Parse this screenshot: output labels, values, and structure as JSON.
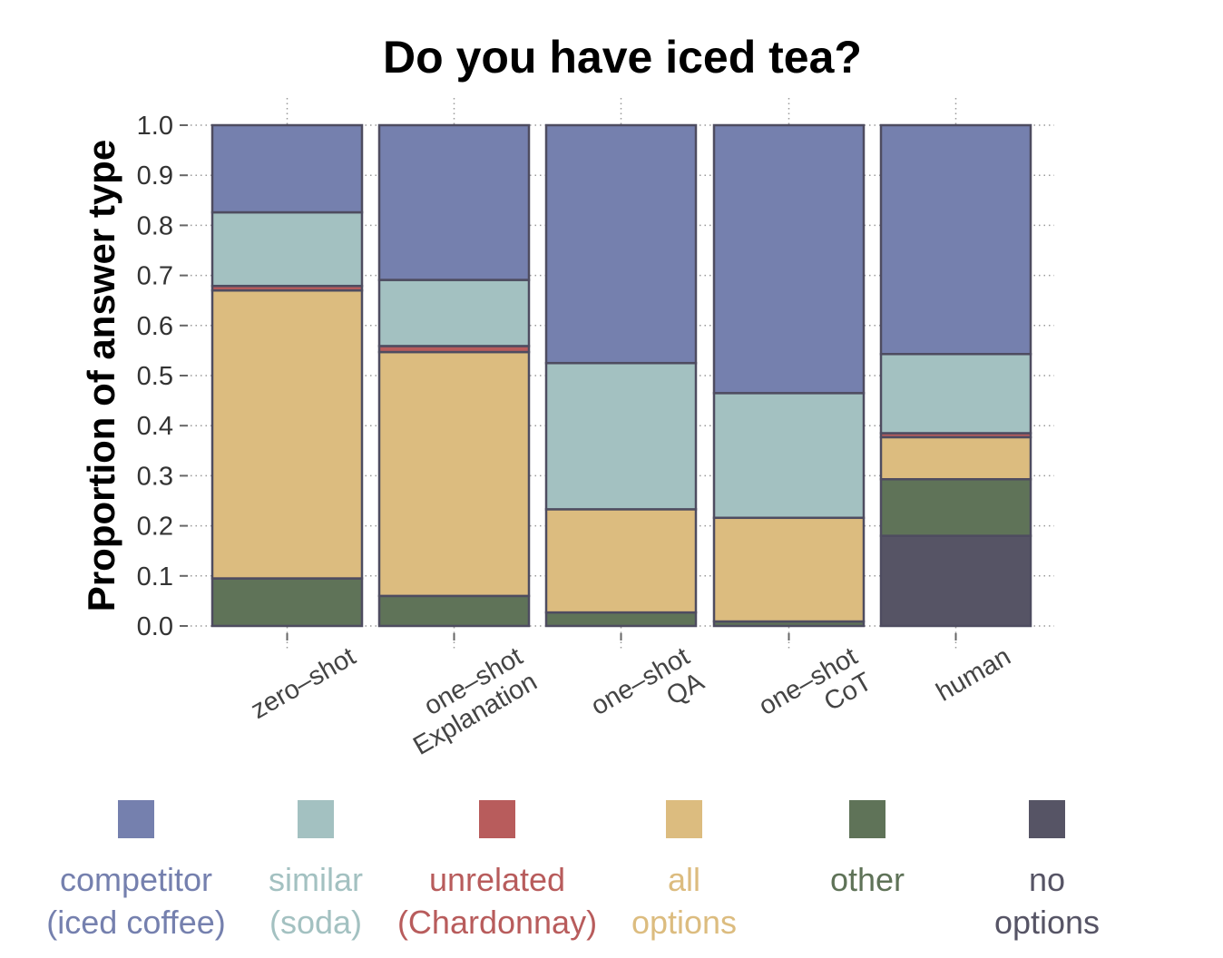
{
  "chart_data": {
    "type": "bar",
    "stacked": true,
    "title": "Do you have iced tea?",
    "ylabel": "Proportion of answer type",
    "xlabel": "",
    "ylim": [
      0,
      1
    ],
    "yticks": [
      "0.0",
      "0.1",
      "0.2",
      "0.3",
      "0.4",
      "0.5",
      "0.6",
      "0.7",
      "0.8",
      "0.9",
      "1.0"
    ],
    "grid": true,
    "legend_position": "bottom",
    "categories": [
      [
        "zero–shot"
      ],
      [
        "one–shot",
        "Explanation"
      ],
      [
        "one–shot",
        "QA"
      ],
      [
        "one–shot",
        "CoT"
      ],
      [
        "human"
      ]
    ],
    "series": [
      {
        "name": "no options",
        "color": "#565465",
        "values": [
          0.0,
          0.0,
          0.0,
          0.0,
          0.18
        ]
      },
      {
        "name": "other",
        "color": "#5f7358",
        "values": [
          0.095,
          0.06,
          0.027,
          0.009,
          0.113
        ]
      },
      {
        "name": "all options",
        "color": "#dcbc7f",
        "values": [
          0.575,
          0.487,
          0.206,
          0.207,
          0.084
        ]
      },
      {
        "name": "unrelated (Chardonnay)",
        "color": "#b85c5c",
        "values": [
          0.009,
          0.012,
          0.0,
          0.0,
          0.008
        ]
      },
      {
        "name": "similar (soda)",
        "color": "#a3c1c1",
        "values": [
          0.147,
          0.132,
          0.292,
          0.249,
          0.158
        ]
      },
      {
        "name": "competitor (iced coffee)",
        "color": "#7580ae",
        "values": [
          0.174,
          0.309,
          0.475,
          0.535,
          0.457
        ]
      }
    ]
  },
  "legend": [
    {
      "lines": [
        "competitor",
        "(iced coffee)"
      ],
      "color": "#7580ae"
    },
    {
      "lines": [
        "similar",
        "(soda)"
      ],
      "color": "#a3c1c1"
    },
    {
      "lines": [
        "unrelated",
        "(Chardonnay)"
      ],
      "color": "#b85c5c"
    },
    {
      "lines": [
        "all",
        "options"
      ],
      "color": "#dcbc7f"
    },
    {
      "lines": [
        "other"
      ],
      "color": "#5f7358"
    },
    {
      "lines": [
        "no",
        "options"
      ],
      "color": "#565465"
    }
  ]
}
